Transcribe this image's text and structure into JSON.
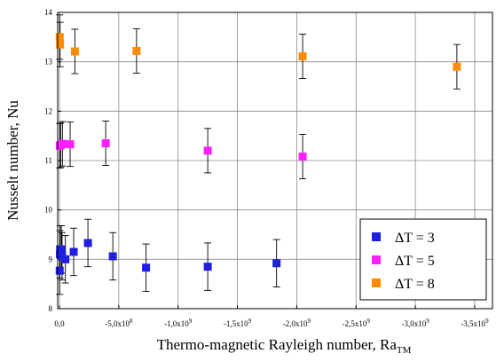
{
  "chart_data": {
    "type": "scatter",
    "xlabel": "Thermo-magnetic Rayleigh number, Ra",
    "xlabel_sub": "TM",
    "ylabel": "Nusselt number, Nu",
    "xlim": [
      15000000.0,
      -3650000000.0
    ],
    "ylim": [
      8,
      14
    ],
    "grid": true,
    "legend_position": "bottom-right",
    "x_ticks": [
      0,
      -500000000.0,
      -1000000000.0,
      -1500000000.0,
      -2000000000.0,
      -2500000000.0,
      -3000000000.0,
      -3500000000.0
    ],
    "x_tick_labels": [
      {
        "base": "0,0",
        "exp": ""
      },
      {
        "base": "-5,0x10",
        "exp": "8"
      },
      {
        "base": "-1,0x10",
        "exp": "9"
      },
      {
        "base": "-1,5x10",
        "exp": "9"
      },
      {
        "base": "-2,0x10",
        "exp": "9"
      },
      {
        "base": "-2,5x10",
        "exp": "9"
      },
      {
        "base": "-3,0x10",
        "exp": "9"
      },
      {
        "base": "-3,5x10",
        "exp": "9"
      }
    ],
    "y_ticks": [
      8,
      9,
      10,
      11,
      12,
      13,
      14
    ],
    "y_tick_labels": [
      "8",
      "9",
      "10",
      "11",
      "12",
      "13",
      "14"
    ],
    "series": [
      {
        "name": "ΔT = 3",
        "color": "#1f1fe0",
        "error": 0.48,
        "points": [
          {
            "x": -2000000.0,
            "y": 8.77
          },
          {
            "x": -4000000.0,
            "y": 9.1
          },
          {
            "x": -6000000.0,
            "y": 9.2
          },
          {
            "x": -16000000.0,
            "y": 9.2
          },
          {
            "x": -22000000.0,
            "y": 9.06
          },
          {
            "x": -50000000.0,
            "y": 9.0
          },
          {
            "x": -120000000.0,
            "y": 9.15
          },
          {
            "x": -240000000.0,
            "y": 9.33
          },
          {
            "x": -450000000.0,
            "y": 9.06
          },
          {
            "x": -730000000.0,
            "y": 8.83
          },
          {
            "x": -1250000000.0,
            "y": 8.85
          },
          {
            "x": -1830000000.0,
            "y": 8.92
          }
        ]
      },
      {
        "name": "ΔT = 5",
        "color": "#ff1fff",
        "error": 0.45,
        "points": [
          {
            "x": -3000000.0,
            "y": 11.3
          },
          {
            "x": -10000000.0,
            "y": 11.31
          },
          {
            "x": -25000000.0,
            "y": 11.34
          },
          {
            "x": -90000000.0,
            "y": 11.33
          },
          {
            "x": -390000000.0,
            "y": 11.35
          },
          {
            "x": -1250000000.0,
            "y": 11.2
          },
          {
            "x": -2050000000.0,
            "y": 11.08
          }
        ]
      },
      {
        "name": "ΔT = 8",
        "color": "#ff8c00",
        "error": 0.45,
        "points": [
          {
            "x": -2000000.0,
            "y": 13.5
          },
          {
            "x": -5000000.0,
            "y": 13.35
          },
          {
            "x": -130000000.0,
            "y": 13.21
          },
          {
            "x": -650000000.0,
            "y": 13.22
          },
          {
            "x": -2050000000.0,
            "y": 13.11
          },
          {
            "x": -3350000000.0,
            "y": 12.9
          }
        ]
      }
    ]
  }
}
